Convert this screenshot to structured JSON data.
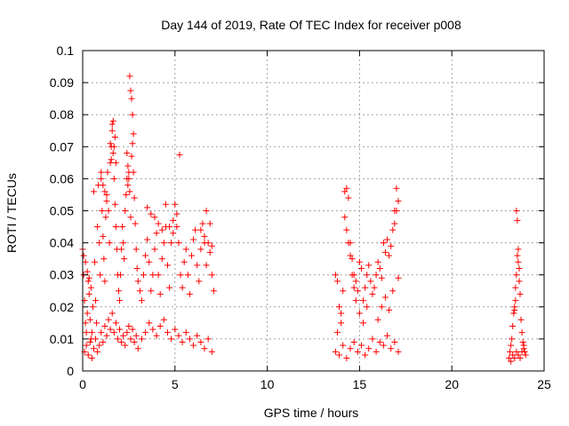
{
  "chart_data": {
    "type": "scatter",
    "title": "Day 144 of 2019, Rate Of TEC Index for receiver p008",
    "xlabel": "GPS time / hours",
    "ylabel": "ROTI / TECUs",
    "xlim": [
      0,
      25
    ],
    "ylim": [
      0,
      0.1
    ],
    "grid": true,
    "marker": "+",
    "series_color": "#ff0000",
    "x_ticks": [
      0,
      5,
      10,
      15,
      20,
      25
    ],
    "x_tick_labels": [
      "0",
      "5",
      "10",
      "15",
      "20",
      "25"
    ],
    "y_ticks": [
      0,
      0.01,
      0.02,
      0.03,
      0.04,
      0.05,
      0.06,
      0.07,
      0.08,
      0.09,
      0.1
    ],
    "y_tick_labels": [
      "0",
      "0.01",
      "0.02",
      "0.03",
      "0.04",
      "0.05",
      "0.06",
      "0.07",
      "0.08",
      "0.09",
      "0.1"
    ],
    "series": [
      {
        "name": "ROTI",
        "x": [
          0.0,
          0.05,
          0.1,
          0.15,
          0.2,
          0.25,
          0.3,
          0.35,
          0.4,
          0.45,
          0.5,
          0.55,
          0.6,
          0.65,
          0.7,
          0.75,
          0.8,
          0.85,
          0.9,
          0.95,
          1.0,
          1.05,
          1.1,
          1.15,
          1.2,
          1.25,
          1.3,
          1.35,
          1.4,
          1.45,
          1.5,
          1.55,
          1.6,
          1.65,
          1.7,
          1.75,
          1.8,
          1.85,
          1.9,
          1.95,
          2.0,
          2.05,
          2.1,
          2.15,
          2.2,
          2.25,
          2.3,
          2.35,
          2.4,
          2.45,
          2.5,
          2.55,
          2.6,
          2.65,
          2.7,
          2.75,
          2.8,
          2.85,
          2.9,
          2.95,
          3.0,
          3.1,
          3.2,
          3.3,
          3.4,
          3.5,
          3.6,
          3.7,
          3.8,
          3.9,
          4.0,
          4.1,
          4.2,
          4.3,
          4.4,
          4.5,
          4.6,
          4.7,
          4.8,
          4.9,
          5.0,
          5.1,
          5.2,
          5.3,
          5.4,
          5.5,
          5.6,
          5.7,
          5.8,
          5.9,
          6.0,
          6.1,
          6.2,
          6.3,
          6.4,
          6.5,
          6.6,
          6.7,
          6.8,
          6.9,
          7.0,
          7.1,
          0.1,
          0.2,
          0.3,
          0.4,
          0.5,
          0.6,
          0.7,
          0.8,
          0.9,
          1.0,
          1.1,
          1.2,
          1.3,
          1.4,
          1.5,
          1.6,
          1.7,
          1.8,
          1.9,
          2.0,
          2.1,
          2.2,
          2.3,
          2.4,
          2.5,
          2.6,
          2.7,
          2.8,
          2.9,
          3.0,
          3.2,
          3.4,
          3.6,
          3.8,
          4.0,
          4.2,
          4.4,
          4.6,
          4.8,
          5.0,
          5.2,
          5.4,
          5.6,
          5.8,
          6.0,
          6.2,
          6.4,
          6.6,
          6.8,
          7.0,
          1.6,
          1.65,
          1.7,
          1.75,
          1.8,
          2.55,
          2.6,
          2.65,
          2.7,
          2.75,
          1.5,
          1.55,
          1.0,
          1.1,
          1.2,
          1.3,
          2.4,
          2.45,
          2.5,
          3.5,
          3.7,
          3.9,
          4.1,
          4.3,
          4.5,
          4.7,
          4.9,
          5.1,
          5.25,
          6.4,
          6.6,
          6.7,
          6.9,
          7.0,
          0.05,
          0.15,
          0.25,
          0.35,
          0.45,
          13.7,
          13.8,
          13.9,
          14.0,
          14.1,
          14.2,
          14.3,
          14.4,
          14.5,
          14.6,
          14.7,
          14.8,
          14.9,
          15.0,
          15.1,
          15.2,
          15.3,
          15.4,
          15.5,
          15.6,
          15.7,
          15.8,
          15.9,
          16.0,
          16.1,
          16.2,
          16.3,
          16.4,
          16.5,
          16.6,
          16.7,
          16.8,
          16.9,
          17.0,
          17.1,
          13.7,
          13.9,
          14.1,
          14.3,
          14.5,
          14.7,
          14.9,
          15.1,
          15.3,
          15.5,
          15.7,
          15.9,
          16.1,
          16.3,
          16.5,
          16.7,
          16.9,
          17.1,
          14.2,
          14.3,
          14.4,
          14.5,
          14.6,
          14.7,
          14.8,
          15.0,
          15.2,
          15.4,
          16.0,
          16.2,
          16.4,
          16.6,
          16.8,
          16.9,
          17.0,
          17.1,
          13.8,
          14.0,
          23.1,
          23.15,
          23.2,
          23.25,
          23.3,
          23.35,
          23.4,
          23.45,
          23.5,
          23.55,
          23.6,
          23.65,
          23.7,
          23.75,
          23.8,
          23.85,
          23.9,
          23.95,
          24.0,
          23.2,
          23.3,
          23.4,
          23.5,
          23.6,
          23.7,
          23.8,
          23.9,
          23.5,
          23.55,
          23.6,
          23.65,
          23.45,
          23.4
        ],
        "y": [
          0.038,
          0.03,
          0.022,
          0.015,
          0.012,
          0.018,
          0.028,
          0.024,
          0.016,
          0.01,
          0.012,
          0.02,
          0.056,
          0.034,
          0.022,
          0.015,
          0.045,
          0.058,
          0.04,
          0.03,
          0.06,
          0.05,
          0.042,
          0.035,
          0.028,
          0.048,
          0.055,
          0.062,
          0.05,
          0.04,
          0.065,
          0.07,
          0.075,
          0.068,
          0.06,
          0.052,
          0.045,
          0.038,
          0.03,
          0.025,
          0.022,
          0.03,
          0.038,
          0.045,
          0.04,
          0.035,
          0.05,
          0.055,
          0.06,
          0.058,
          0.062,
          0.056,
          0.048,
          0.067,
          0.071,
          0.062,
          0.054,
          0.046,
          0.038,
          0.032,
          0.028,
          0.025,
          0.022,
          0.03,
          0.036,
          0.041,
          0.034,
          0.025,
          0.03,
          0.038,
          0.043,
          0.03,
          0.024,
          0.035,
          0.04,
          0.045,
          0.033,
          0.026,
          0.04,
          0.047,
          0.052,
          0.045,
          0.04,
          0.03,
          0.026,
          0.034,
          0.038,
          0.03,
          0.024,
          0.036,
          0.041,
          0.044,
          0.033,
          0.028,
          0.038,
          0.046,
          0.04,
          0.033,
          0.04,
          0.037,
          0.03,
          0.025,
          0.006,
          0.008,
          0.005,
          0.009,
          0.004,
          0.007,
          0.01,
          0.006,
          0.008,
          0.012,
          0.009,
          0.014,
          0.011,
          0.016,
          0.013,
          0.018,
          0.012,
          0.015,
          0.01,
          0.013,
          0.009,
          0.011,
          0.008,
          0.012,
          0.014,
          0.01,
          0.013,
          0.009,
          0.011,
          0.007,
          0.01,
          0.012,
          0.015,
          0.013,
          0.011,
          0.014,
          0.016,
          0.012,
          0.01,
          0.013,
          0.011,
          0.009,
          0.012,
          0.01,
          0.008,
          0.011,
          0.009,
          0.007,
          0.01,
          0.006,
          0.077,
          0.078,
          0.07,
          0.073,
          0.065,
          0.092,
          0.0875,
          0.085,
          0.08,
          0.074,
          0.071,
          0.066,
          0.062,
          0.058,
          0.056,
          0.053,
          0.068,
          0.064,
          0.06,
          0.051,
          0.049,
          0.048,
          0.046,
          0.044,
          0.052,
          0.045,
          0.043,
          0.049,
          0.0675,
          0.044,
          0.042,
          0.05,
          0.046,
          0.039,
          0.036,
          0.034,
          0.031,
          0.029,
          0.026,
          0.03,
          0.028,
          0.02,
          0.018,
          0.025,
          0.056,
          0.057,
          0.054,
          0.04,
          0.035,
          0.03,
          0.028,
          0.025,
          0.034,
          0.032,
          0.022,
          0.026,
          0.03,
          0.033,
          0.028,
          0.024,
          0.026,
          0.03,
          0.034,
          0.032,
          0.029,
          0.04,
          0.037,
          0.041,
          0.036,
          0.039,
          0.044,
          0.05,
          0.057,
          0.053,
          0.006,
          0.005,
          0.008,
          0.004,
          0.007,
          0.009,
          0.006,
          0.008,
          0.005,
          0.007,
          0.01,
          0.006,
          0.009,
          0.008,
          0.011,
          0.007,
          0.009,
          0.006,
          0.048,
          0.044,
          0.04,
          0.036,
          0.03,
          0.026,
          0.022,
          0.018,
          0.015,
          0.02,
          0.016,
          0.02,
          0.023,
          0.019,
          0.025,
          0.046,
          0.05,
          0.029,
          0.012,
          0.015,
          0.004,
          0.006,
          0.008,
          0.01,
          0.014,
          0.018,
          0.02,
          0.026,
          0.03,
          0.036,
          0.038,
          0.032,
          0.024,
          0.016,
          0.012,
          0.009,
          0.007,
          0.006,
          0.005,
          0.003,
          0.005,
          0.004,
          0.006,
          0.005,
          0.004,
          0.006,
          0.008,
          0.05,
          0.047,
          0.034,
          0.028,
          0.022,
          0.019
        ]
      }
    ]
  }
}
